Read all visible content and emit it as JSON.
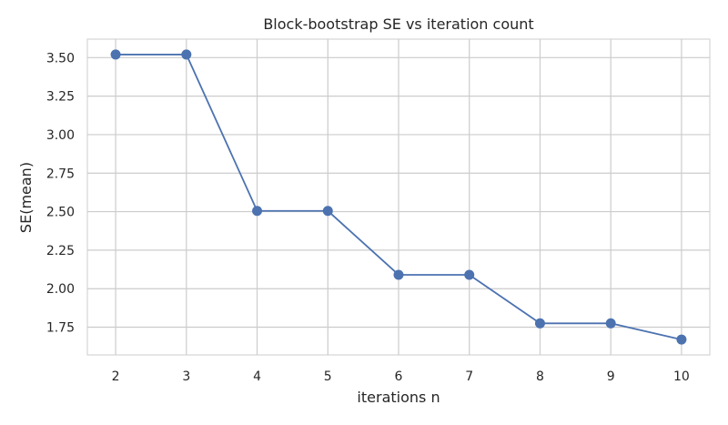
{
  "chart_data": {
    "type": "line",
    "title": "Block-bootstrap SE vs iteration count",
    "xlabel": "iterations n",
    "ylabel": "SE(mean)",
    "x": [
      2,
      3,
      4,
      5,
      6,
      7,
      8,
      9,
      10
    ],
    "series": [
      {
        "values": [
          3.52,
          3.52,
          2.505,
          2.505,
          2.09,
          2.09,
          1.775,
          1.775,
          1.67
        ]
      }
    ],
    "xticks": [
      2,
      3,
      4,
      5,
      6,
      7,
      8,
      9,
      10
    ],
    "yticks": [
      1.75,
      2.0,
      2.25,
      2.5,
      2.75,
      3.0,
      3.25,
      3.5
    ],
    "ytick_labels": [
      "1.75",
      "2.00",
      "2.25",
      "2.50",
      "2.75",
      "3.00",
      "3.25",
      "3.50"
    ],
    "xlim": [
      1.6,
      10.4
    ],
    "ylim": [
      1.57,
      3.62
    ],
    "grid": true,
    "colors": {
      "line": "#4c72b0",
      "grid": "#cccccc"
    }
  }
}
